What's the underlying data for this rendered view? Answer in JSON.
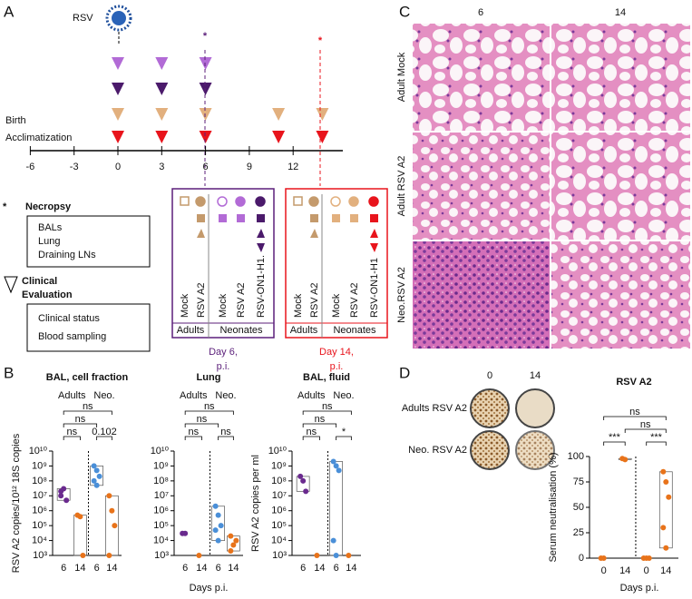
{
  "panels": {
    "A": {
      "label": "A",
      "virus": "RSV",
      "birth": "Birth",
      "acclimatization": "Acclimatization",
      "timeline": {
        "ticks": [
          -6,
          -3,
          0,
          3,
          6,
          9,
          12
        ]
      },
      "necropsy": {
        "title": "Necropsy",
        "items": [
          "BALs",
          "Lung",
          "Draining LNs"
        ]
      },
      "clinical": {
        "title": [
          "Clinical",
          "Evaluation"
        ],
        "items": [
          "Clinical status",
          "Blood sampling"
        ]
      },
      "day6": {
        "columns": [
          "Mock",
          "RSV A2",
          "Mock",
          "RSV A2",
          "RSV-ON1-H1."
        ],
        "groups": [
          "Adults",
          "Neonates"
        ],
        "caption": [
          "Day 6,",
          "p.i."
        ]
      },
      "day14": {
        "columns": [
          "Mock",
          "RSV A2",
          "Mock",
          "RSV A2",
          "RSV-ON1-H1"
        ],
        "groups": [
          "Adults",
          "Neonates"
        ],
        "caption": [
          "Day 14,",
          "p.i."
        ]
      }
    },
    "C": {
      "label": "C",
      "columns": [
        "6",
        "14"
      ],
      "rows": [
        "Adult Mock",
        "Adult RSV A2",
        "Neo.RSV A2"
      ]
    },
    "B": {
      "label": "B",
      "xlabel": "Days p.i.",
      "plots": [
        {
          "title": "BAL, cell fraction",
          "ylabel": "RSV A2 copies/10¹² 18S copies",
          "log": true,
          "ylim": [
            1000,
            10000000000
          ],
          "yticks": [
            {
              "value": 1000,
              "label": "10³"
            },
            {
              "value": 10000,
              "label": "10⁴"
            },
            {
              "value": 100000,
              "label": "10⁵"
            },
            {
              "value": 1000000,
              "label": "10⁶"
            },
            {
              "value": 10000000,
              "label": "10⁷"
            },
            {
              "value": 100000000,
              "label": "10⁸"
            },
            {
              "value": 1000000000,
              "label": "10⁹"
            },
            {
              "value": 10000000000,
              "label": "10¹⁰"
            }
          ],
          "group_labels": [
            "Adults",
            "Neo."
          ],
          "significance": [
            "ns",
            "ns",
            "ns",
            "0.102"
          ],
          "groups": [
            {
              "category": "6",
              "color": "#6a2a8e",
              "values": [
                20000000,
                30000000,
                5000000,
                10000000
              ]
            },
            {
              "category": "14",
              "color": "#e8731a",
              "values": [
                500000,
                400000,
                1000
              ]
            },
            {
              "category": "6",
              "color": "#4a8fd8",
              "values": [
                1000000000,
                500000000,
                200000000,
                100000000,
                50000000
              ]
            },
            {
              "category": "14",
              "color": "#e8731a",
              "values": [
                10000000,
                1000000,
                100000,
                1000
              ]
            }
          ]
        },
        {
          "title": "Lung",
          "log": true,
          "ylim": [
            1000,
            10000000000
          ],
          "yticks": [
            {
              "value": 1000,
              "label": "10³"
            },
            {
              "value": 10000,
              "label": "10⁴"
            },
            {
              "value": 100000,
              "label": "10⁵"
            },
            {
              "value": 1000000,
              "label": "10⁶"
            },
            {
              "value": 10000000,
              "label": "10⁷"
            },
            {
              "value": 100000000,
              "label": "10⁸"
            },
            {
              "value": 1000000000,
              "label": "10⁹"
            },
            {
              "value": 10000000000,
              "label": "10¹⁰"
            }
          ],
          "group_labels": [
            "Adults",
            "Neo."
          ],
          "significance": [
            "ns",
            "ns",
            "ns",
            "ns"
          ],
          "groups": [
            {
              "category": "6",
              "color": "#6a2a8e",
              "values": [
                30000,
                30000
              ]
            },
            {
              "category": "14",
              "color": "#e8731a",
              "values": [
                1000
              ]
            },
            {
              "category": "6",
              "color": "#4a8fd8",
              "values": [
                2000000,
                500000,
                100000,
                50000,
                10000
              ]
            },
            {
              "category": "14",
              "color": "#e8731a",
              "values": [
                20000,
                5000,
                10000,
                2000
              ]
            }
          ]
        },
        {
          "title": "BAL, fluid",
          "ylabel": "RSV A2 copies per ml",
          "log": true,
          "ylim": [
            1000,
            10000000000
          ],
          "yticks": [
            {
              "value": 1000,
              "label": "10³"
            },
            {
              "value": 10000,
              "label": "10⁴"
            },
            {
              "value": 100000,
              "label": "10⁵"
            },
            {
              "value": 1000000,
              "label": "10⁶"
            },
            {
              "value": 10000000,
              "label": "10⁷"
            },
            {
              "value": 100000000,
              "label": "10⁸"
            },
            {
              "value": 1000000000,
              "label": "10⁹"
            },
            {
              "value": 10000000000,
              "label": "10¹⁰"
            }
          ],
          "group_labels": [
            "Adults",
            "Neo."
          ],
          "significance": [
            "ns",
            "ns",
            "ns",
            "*"
          ],
          "groups": [
            {
              "category": "6",
              "color": "#6a2a8e",
              "values": [
                200000000,
                100000000,
                20000000
              ]
            },
            {
              "category": "14",
              "color": "#e8731a",
              "values": [
                1000
              ]
            },
            {
              "category": "6",
              "color": "#4a8fd8",
              "values": [
                2000000000,
                1000000000,
                500000000,
                10000,
                1000
              ]
            },
            {
              "category": "14",
              "color": "#e8731a",
              "values": [
                1000
              ]
            }
          ]
        }
      ]
    },
    "D": {
      "label": "D",
      "wells": {
        "columns": [
          "0",
          "14"
        ],
        "rows": [
          "Adults RSV A2",
          "Neo. RSV A2"
        ]
      },
      "xlabel": "Days p.i.",
      "plot": {
        "title": "RSV A2",
        "ylabel": "Serum neutralisation (%)",
        "log": false,
        "ylim": [
          0,
          100
        ],
        "yticks": [
          0,
          25,
          50,
          75,
          100
        ],
        "significance": [
          "ns",
          "ns",
          "***",
          "***"
        ],
        "groups": [
          {
            "category": "0",
            "color": "#e8731a",
            "values": [
              0,
              0
            ]
          },
          {
            "category": "14",
            "color": "#e8731a",
            "values": [
              98,
              97
            ]
          },
          {
            "category": "0",
            "color": "#e8731a",
            "values": [
              0,
              0,
              0
            ]
          },
          {
            "category": "14",
            "color": "#e8731a",
            "values": [
              85,
              75,
              60,
              30,
              10
            ]
          }
        ]
      }
    }
  }
}
